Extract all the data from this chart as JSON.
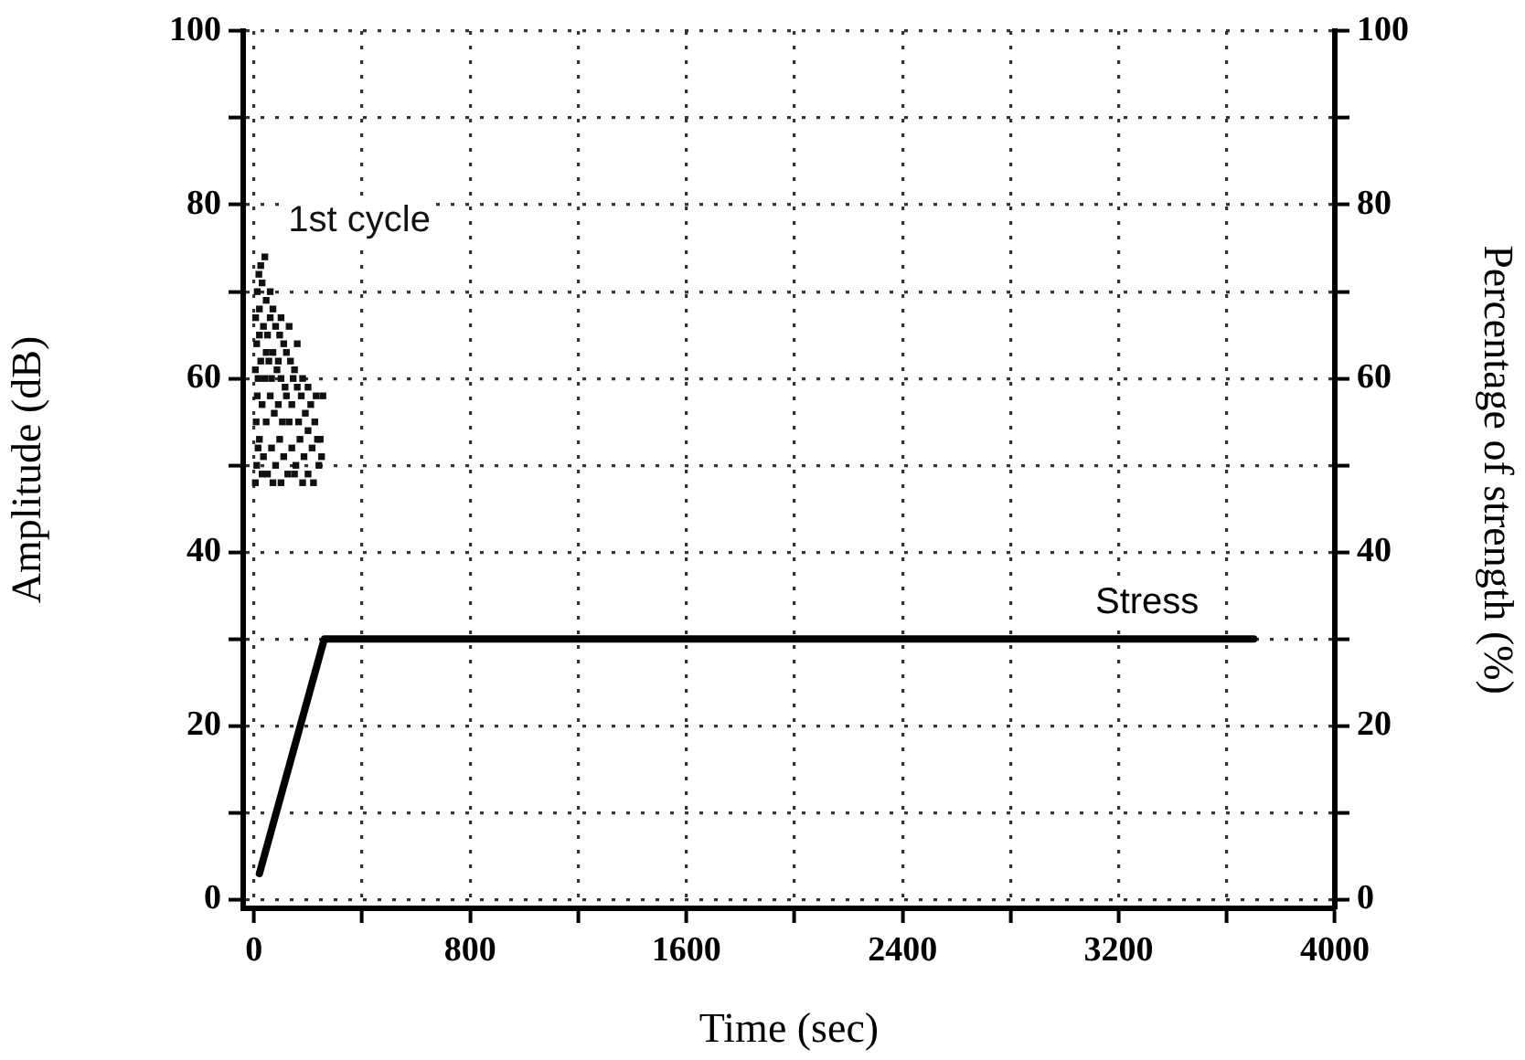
{
  "chart_data": {
    "type": "scatter",
    "xlabel": "Time (sec)",
    "ylabel": "Amplitude (dB)",
    "y2label": "Percentage of strength (%)",
    "xlim": [
      -40,
      4000
    ],
    "xticks": [
      0,
      {
        "value": 400,
        "label": null
      },
      800,
      {
        "value": 1200,
        "label": null
      },
      1600,
      {
        "value": 2000,
        "label": null
      },
      2400,
      {
        "value": 2800,
        "label": null
      },
      3200,
      {
        "value": 3600,
        "label": null
      },
      4000
    ],
    "ylim": [
      -1,
      100
    ],
    "yticks": [
      0,
      {
        "value": 10,
        "label": null
      },
      20,
      {
        "value": 30,
        "label": null
      },
      40,
      {
        "value": 50,
        "label": null
      },
      60,
      {
        "value": 70,
        "label": null
      },
      80,
      {
        "value": 90,
        "label": null
      },
      100
    ],
    "y2lim": [
      -1,
      100
    ],
    "y2ticks": [
      0,
      {
        "value": 10,
        "label": null
      },
      20,
      {
        "value": 30,
        "label": null
      },
      40,
      {
        "value": 50,
        "label": null
      },
      60,
      {
        "value": 70,
        "label": null
      },
      80,
      {
        "value": 90,
        "label": null
      },
      100
    ],
    "grid": true,
    "marker": "square",
    "series": [
      {
        "name": "1st cycle",
        "color": "#111111",
        "x": [
          5,
          10,
          15,
          8,
          12,
          5,
          10,
          6,
          12,
          18,
          25,
          40,
          30,
          45,
          20,
          35,
          50,
          60,
          70,
          80,
          95,
          110,
          25,
          40,
          55,
          70,
          85,
          100,
          120,
          135,
          150,
          30,
          45,
          60,
          75,
          90,
          105,
          120,
          140,
          160,
          175,
          190,
          210,
          230,
          255,
          20,
          35,
          50,
          65,
          80,
          95,
          110,
          125,
          140,
          155,
          170,
          185,
          200,
          215,
          235,
          250,
          245,
          30,
          70,
          100,
          150,
          180,
          220,
          240,
          15,
          65,
          130,
          165,
          200,
          225,
          90,
          45,
          115,
          145,
          180,
          200,
          160,
          130,
          100,
          60,
          20
        ],
        "values": [
          48,
          50,
          52,
          55,
          58,
          61,
          64,
          67,
          70,
          72,
          73,
          74,
          71,
          69,
          68,
          66,
          65,
          67,
          68,
          66,
          65,
          64,
          62,
          60,
          62,
          63,
          61,
          60,
          63,
          62,
          61,
          57,
          55,
          58,
          56,
          57,
          55,
          58,
          57,
          59,
          58,
          56,
          57,
          58,
          58,
          53,
          51,
          49,
          52,
          50,
          53,
          51,
          49,
          52,
          50,
          53,
          51,
          49,
          52,
          53,
          51,
          53,
          49,
          48,
          48,
          49,
          48,
          48,
          50,
          60,
          60,
          55,
          55,
          54,
          55,
          62,
          63,
          59,
          60,
          60,
          59,
          64,
          66,
          67,
          70,
          65
        ]
      },
      {
        "name": "Stress",
        "type": "line",
        "axis": "y2",
        "marker": "none",
        "color": "#000000",
        "x": [
          20,
          260,
          3700
        ],
        "values": [
          3,
          30,
          30
        ]
      }
    ]
  }
}
